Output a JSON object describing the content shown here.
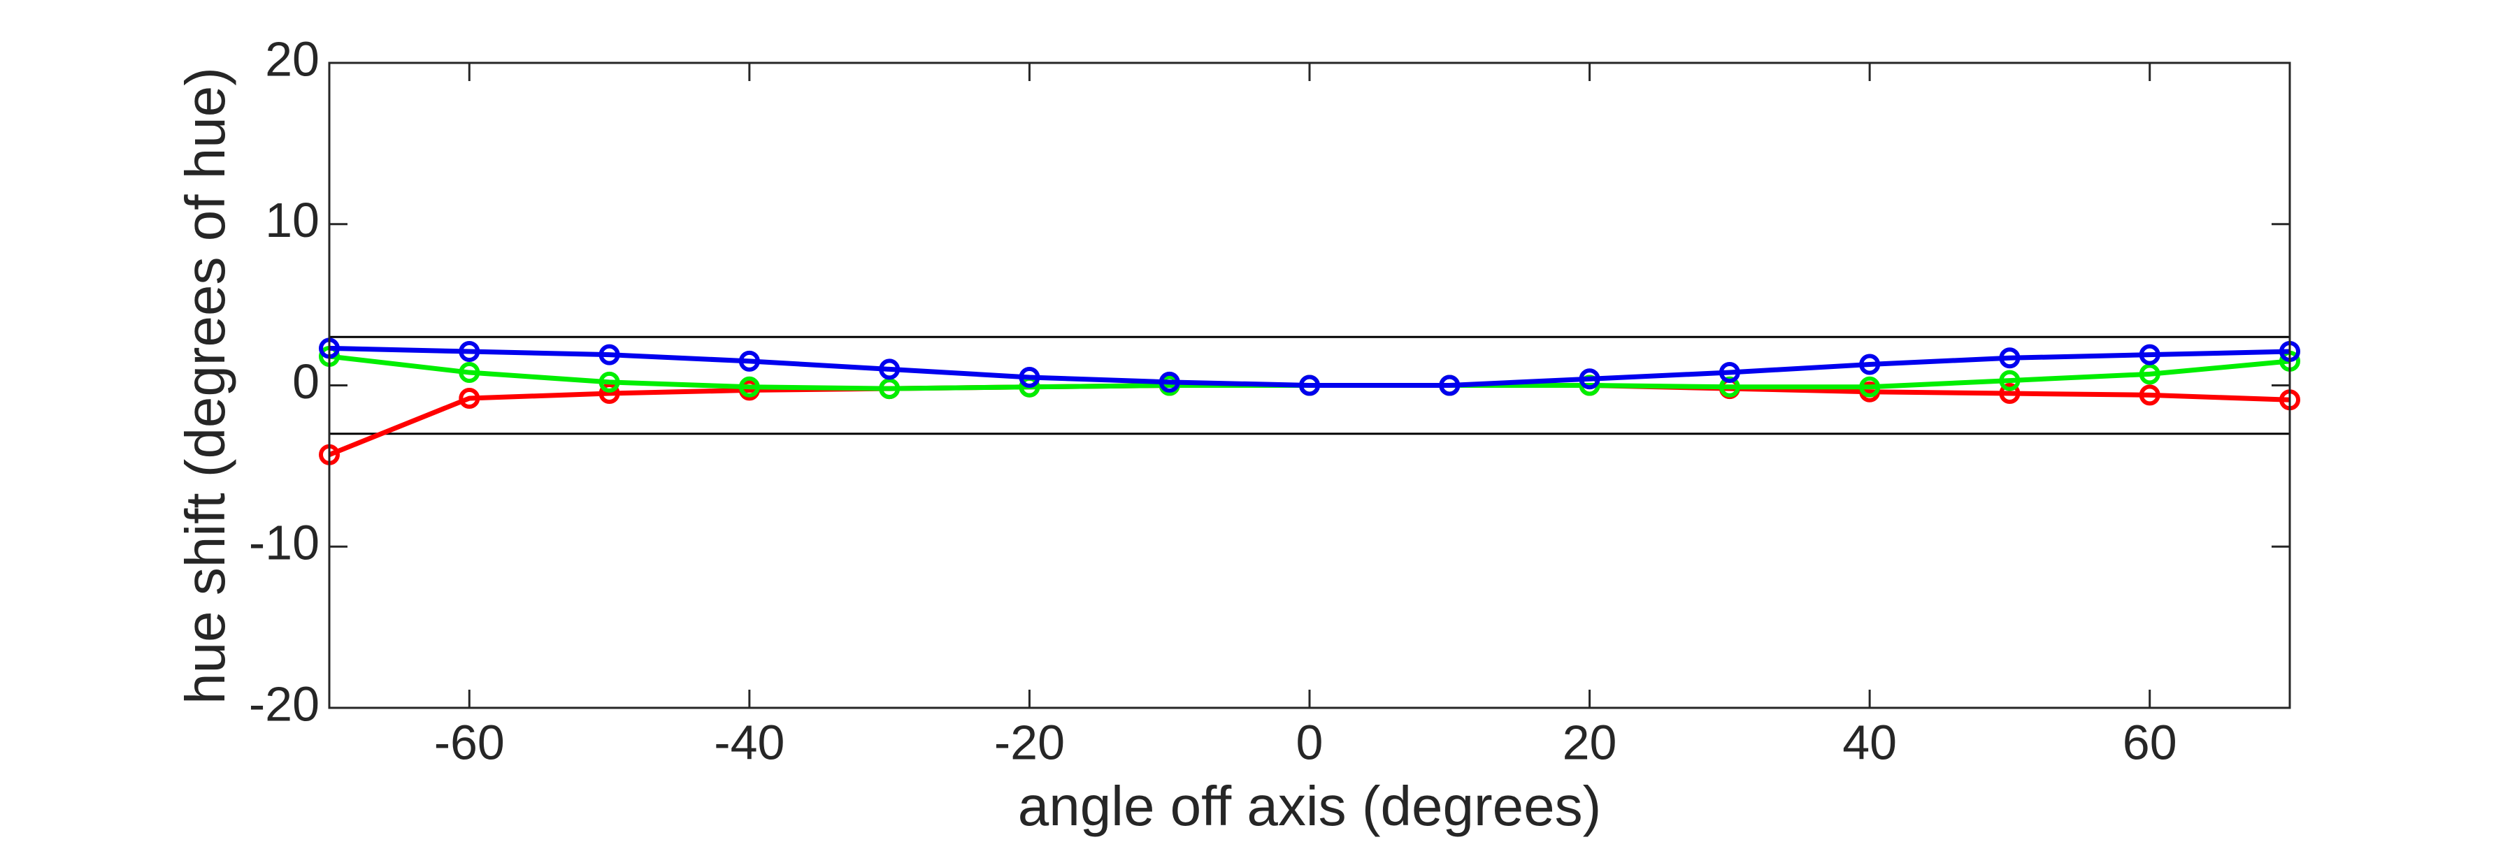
{
  "chart_data": {
    "type": "line",
    "x_label": "angle off axis (degrees)",
    "y_label": "hue shift (degrees of hue)",
    "x": [
      -70,
      -60,
      -50,
      -40,
      -30,
      -20,
      -10,
      0,
      10,
      20,
      30,
      40,
      50,
      60,
      70
    ],
    "series": [
      {
        "color": "#ff0000",
        "values": [
          -4.3,
          -0.8,
          -0.5,
          -0.3,
          -0.2,
          -0.1,
          0,
          0,
          0,
          0,
          -0.2,
          -0.4,
          -0.5,
          -0.6,
          -0.9
        ]
      },
      {
        "color": "#00ee00",
        "values": [
          1.8,
          0.8,
          0.2,
          -0.1,
          -0.2,
          -0.1,
          0,
          0,
          0,
          0,
          -0.1,
          -0.1,
          0.3,
          0.7,
          1.5
        ]
      },
      {
        "color": "#0000ee",
        "values": [
          2.3,
          2.1,
          1.9,
          1.5,
          1.0,
          0.5,
          0.2,
          0,
          0,
          0.4,
          0.8,
          1.3,
          1.7,
          1.9,
          2.1
        ]
      }
    ],
    "reference_lines": [
      3,
      -3
    ],
    "xlim": [
      -70,
      70
    ],
    "xticks": [
      -60,
      -40,
      -20,
      0,
      20,
      40,
      60
    ],
    "ylim": [
      -20,
      20
    ],
    "yticks": [
      -20,
      -10,
      0,
      10,
      20
    ],
    "markers": "circle",
    "grid": false
  }
}
